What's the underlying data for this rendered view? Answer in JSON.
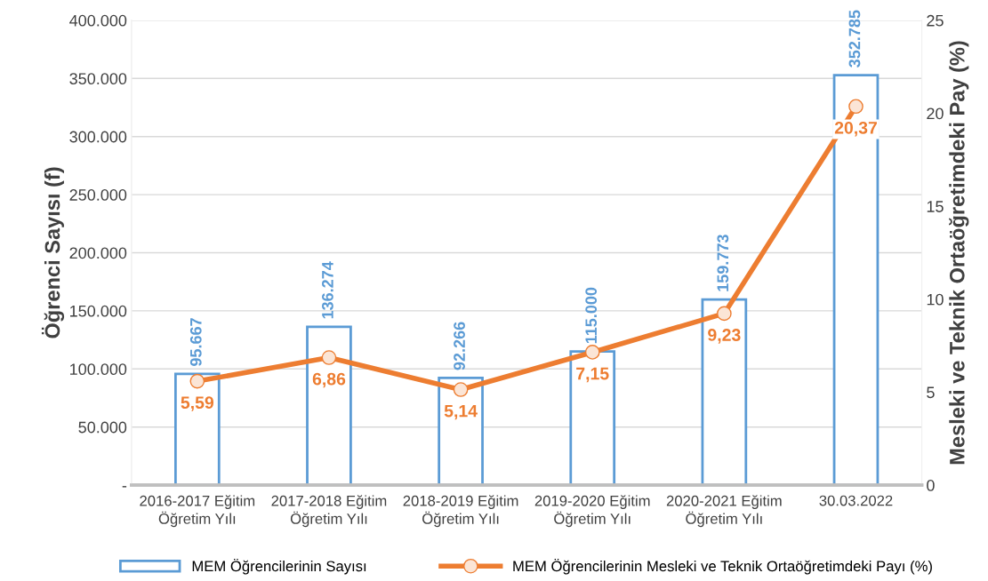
{
  "chart_data": {
    "type": "bar",
    "categories": [
      "2016-2017 Eğitim\nÖğretim Yılı",
      "2017-2018 Eğitim\nÖğretim Yılı",
      "2018-2019 Eğitim\nÖğretim Yılı",
      "2019-2020 Eğitim\nÖğretim Yılı",
      "2020-2021 Eğitim\nÖğretim Yılı",
      "30.03.2022"
    ],
    "ylabel": "Öğrenci Sayısı (f)",
    "y2label": "Mesleki ve Teknik Ortaöğretimdeki Pay (%)",
    "series": [
      {
        "name": "MEM Öğrencilerinin Sayısı",
        "color": "#5b9bd5",
        "values": [
          95667,
          136274,
          92266,
          115000,
          159773,
          352785
        ],
        "value_labels": [
          "95.667",
          "136.274",
          "92.266",
          "115.000",
          "159.773",
          "352.785"
        ]
      },
      {
        "name": "MEM Öğrencilerinin Mesleki ve Teknik Ortaöğretimdeki Payı (%)",
        "type": "line",
        "axis": "y2",
        "color": "#ed7d31",
        "values": [
          5.59,
          6.86,
          5.14,
          7.15,
          9.23,
          20.37
        ],
        "value_labels": [
          "5,59",
          "6,86",
          "5,14",
          "7,15",
          "9,23",
          "20,37"
        ]
      }
    ],
    "ylim": [
      0,
      400000
    ],
    "yticks": [
      {
        "value": 0,
        "label": "-"
      },
      {
        "value": 50000,
        "label": "50.000"
      },
      {
        "value": 100000,
        "label": "100.000"
      },
      {
        "value": 150000,
        "label": "150.000"
      },
      {
        "value": 200000,
        "label": "200.000"
      },
      {
        "value": 250000,
        "label": "250.000"
      },
      {
        "value": 300000,
        "label": "300.000"
      },
      {
        "value": 350000,
        "label": "350.000"
      },
      {
        "value": 400000,
        "label": "400.000"
      }
    ],
    "y2lim": [
      0,
      25
    ],
    "y2ticks": [
      0,
      5,
      10,
      15,
      20,
      25
    ],
    "grid": "y",
    "legend": "bottom",
    "marker": "circle",
    "line_style": "solid"
  }
}
